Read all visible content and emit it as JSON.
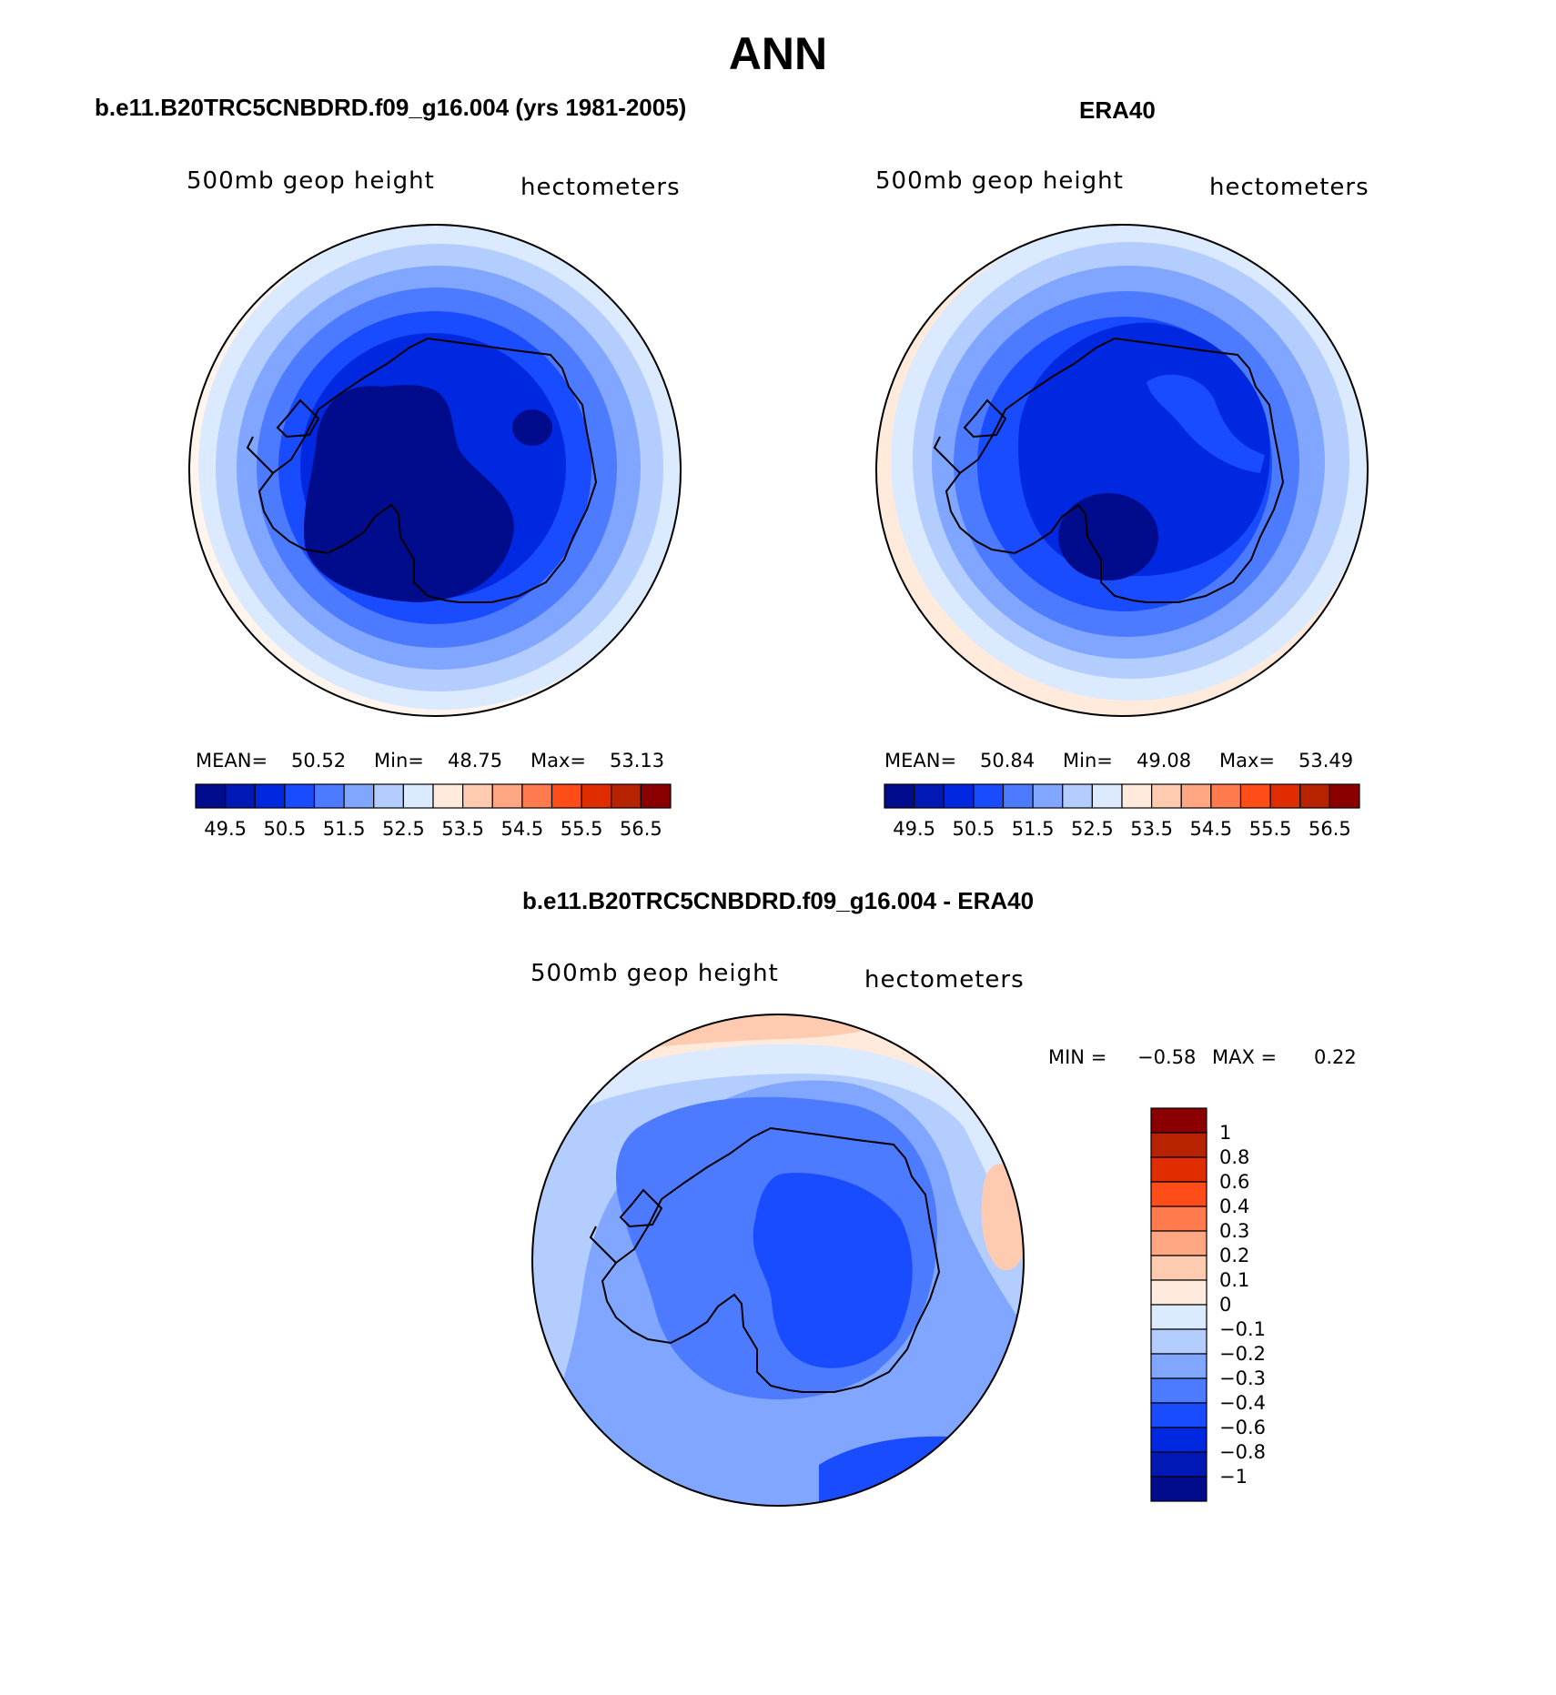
{
  "page": {
    "title": "ANN"
  },
  "panels": {
    "model": {
      "title": "b.e11.B20TRC5CNBDRD.f09_g16.004 (yrs 1981-2005)",
      "left_label": "500mb geop height",
      "right_label": "hectometers",
      "stats": {
        "mean_label": "MEAN=",
        "mean": "50.52",
        "min_label": "Min=",
        "min": "48.75",
        "max_label": "Max=",
        "max": "53.13"
      }
    },
    "obs": {
      "title": "ERA40",
      "left_label": "500mb geop height",
      "right_label": "hectometers",
      "stats": {
        "mean_label": "MEAN=",
        "mean": "50.84",
        "min_label": "Min=",
        "min": "49.08",
        "max_label": "Max=",
        "max": "53.49"
      }
    },
    "diff": {
      "title": "b.e11.B20TRC5CNBDRD.f09_g16.004 - ERA40",
      "left_label": "500mb geop height",
      "right_label": "hectometers",
      "stats": {
        "min_label": "MIN =",
        "min": "−0.58",
        "max_label": "MAX =",
        "max": "0.22"
      }
    }
  },
  "colorbars": {
    "field": {
      "colors": [
        "#000c8c",
        "#0019b4",
        "#0028e1",
        "#1a4cff",
        "#4d7bff",
        "#80a6ff",
        "#b3cdff",
        "#dceaff",
        "#ffeadb",
        "#ffcbb0",
        "#ffa682",
        "#ff7b4d",
        "#ff4d1a",
        "#e02d00",
        "#b72200",
        "#8a0000"
      ],
      "labels": [
        "49.5",
        "50.5",
        "51.5",
        "52.5",
        "53.5",
        "54.5",
        "55.5",
        "56.5"
      ]
    },
    "diff": {
      "colors": [
        "#8a0000",
        "#b72200",
        "#e02d00",
        "#ff4d1a",
        "#ff7b4d",
        "#ffa682",
        "#ffcbb0",
        "#ffeadb",
        "#dceaff",
        "#b3cdff",
        "#80a6ff",
        "#4d7bff",
        "#1a4cff",
        "#0028e1",
        "#0019b4",
        "#000c8c"
      ],
      "labels": [
        "1",
        "0.8",
        "0.6",
        "0.4",
        "0.3",
        "0.2",
        "0.1",
        "0",
        "−0.1",
        "−0.2",
        "−0.3",
        "−0.4",
        "−0.6",
        "−0.8",
        "−1"
      ]
    }
  }
}
